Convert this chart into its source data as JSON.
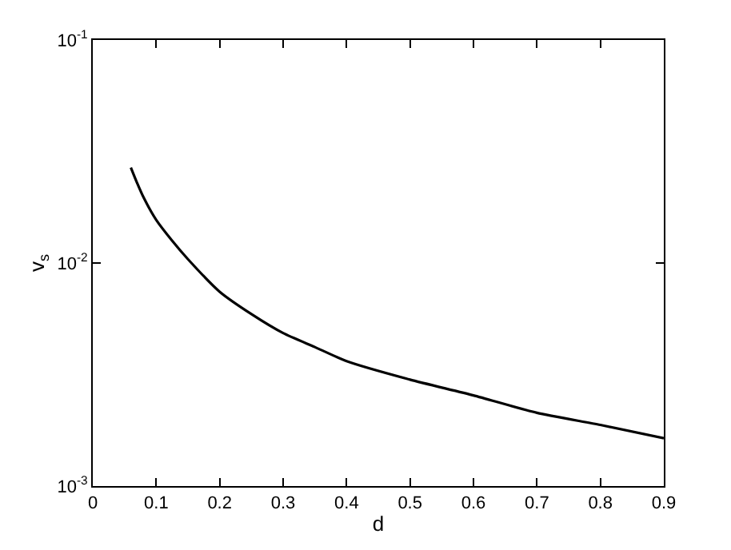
{
  "chart_data": {
    "type": "line",
    "xlabel": "d",
    "ylabel": "v$_{s}$",
    "log": "y",
    "x": [
      0.06,
      0.07,
      0.08,
      0.1,
      0.125,
      0.15,
      0.2,
      0.25,
      0.3,
      0.35,
      0.4,
      0.5,
      0.6,
      0.7,
      0.8,
      0.9
    ],
    "series": [
      {
        "color": "#000000",
        "values": [
          0.0268,
          0.0228,
          0.0197,
          0.0156,
          0.0126,
          0.0104,
          0.00743,
          0.0059,
          0.00485,
          0.0042,
          0.00363,
          0.003,
          0.00255,
          0.00213,
          0.00188,
          0.00164
        ]
      }
    ],
    "xlim": [
      0,
      0.9
    ],
    "xticks": [
      0,
      0.1,
      0.2,
      0.3,
      0.4,
      0.5,
      0.6,
      0.7,
      0.8,
      0.9
    ],
    "ylim": [
      0.001,
      0.1
    ],
    "yticks": [
      {
        "value": 0.001,
        "label": "10$^{-3}$"
      },
      {
        "value": 0.01,
        "label": "10$^{-2}$"
      },
      {
        "value": 0.1,
        "label": "10$^{-1}$"
      }
    ],
    "marker": "none",
    "line_style": "solid"
  }
}
